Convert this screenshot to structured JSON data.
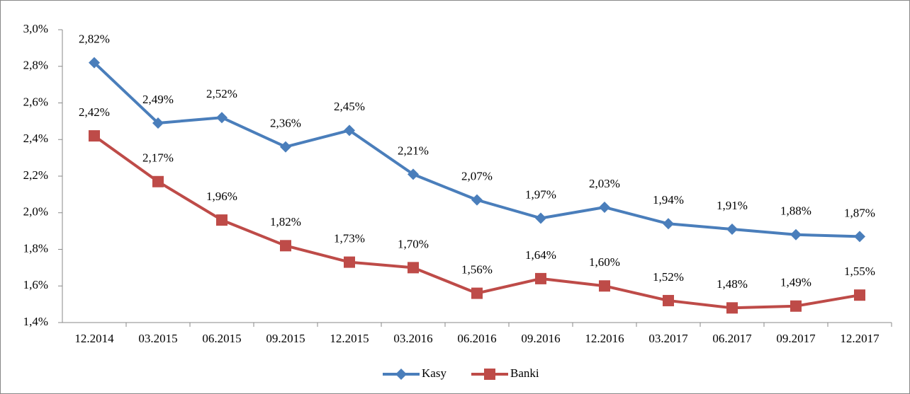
{
  "chart_data": {
    "type": "line",
    "categories": [
      "12.2014",
      "03.2015",
      "06.2015",
      "09.2015",
      "12.2015",
      "03.2016",
      "06.2016",
      "09.2016",
      "12.2016",
      "03.2017",
      "06.2017",
      "09.2017",
      "12.2017"
    ],
    "series": [
      {
        "name": "Kasy",
        "color": "#4a7ebb",
        "marker": "diamond",
        "values": [
          2.82,
          2.49,
          2.52,
          2.36,
          2.45,
          2.21,
          2.07,
          1.97,
          2.03,
          1.94,
          1.91,
          1.88,
          1.87
        ],
        "value_labels": [
          "2,82%",
          "2,49%",
          "2,52%",
          "2,36%",
          "2,45%",
          "2,21%",
          "2,07%",
          "1,97%",
          "2,03%",
          "1,94%",
          "1,91%",
          "1,88%",
          "1,87%"
        ]
      },
      {
        "name": "Banki",
        "color": "#be4b48",
        "marker": "square",
        "values": [
          2.42,
          2.17,
          1.96,
          1.82,
          1.73,
          1.7,
          1.56,
          1.64,
          1.6,
          1.52,
          1.48,
          1.49,
          1.55
        ],
        "value_labels": [
          "2,42%",
          "2,17%",
          "1,96%",
          "1,82%",
          "1,73%",
          "1,70%",
          "1,56%",
          "1,64%",
          "1,60%",
          "1,52%",
          "1,48%",
          "1,49%",
          "1,55%"
        ]
      }
    ],
    "ylim": [
      1.4,
      3.0
    ],
    "yticks": [
      {
        "value": 1.4,
        "label": "1,4%"
      },
      {
        "value": 1.6,
        "label": "1,6%"
      },
      {
        "value": 1.8,
        "label": "1,8%"
      },
      {
        "value": 2.0,
        "label": "2,0%"
      },
      {
        "value": 2.2,
        "label": "2,2%"
      },
      {
        "value": 2.4,
        "label": "2,4%"
      },
      {
        "value": 2.6,
        "label": "2,6%"
      },
      {
        "value": 2.8,
        "label": "2,8%"
      },
      {
        "value": 3.0,
        "label": "3,0%"
      }
    ],
    "grid": false,
    "legend": "bottom"
  }
}
